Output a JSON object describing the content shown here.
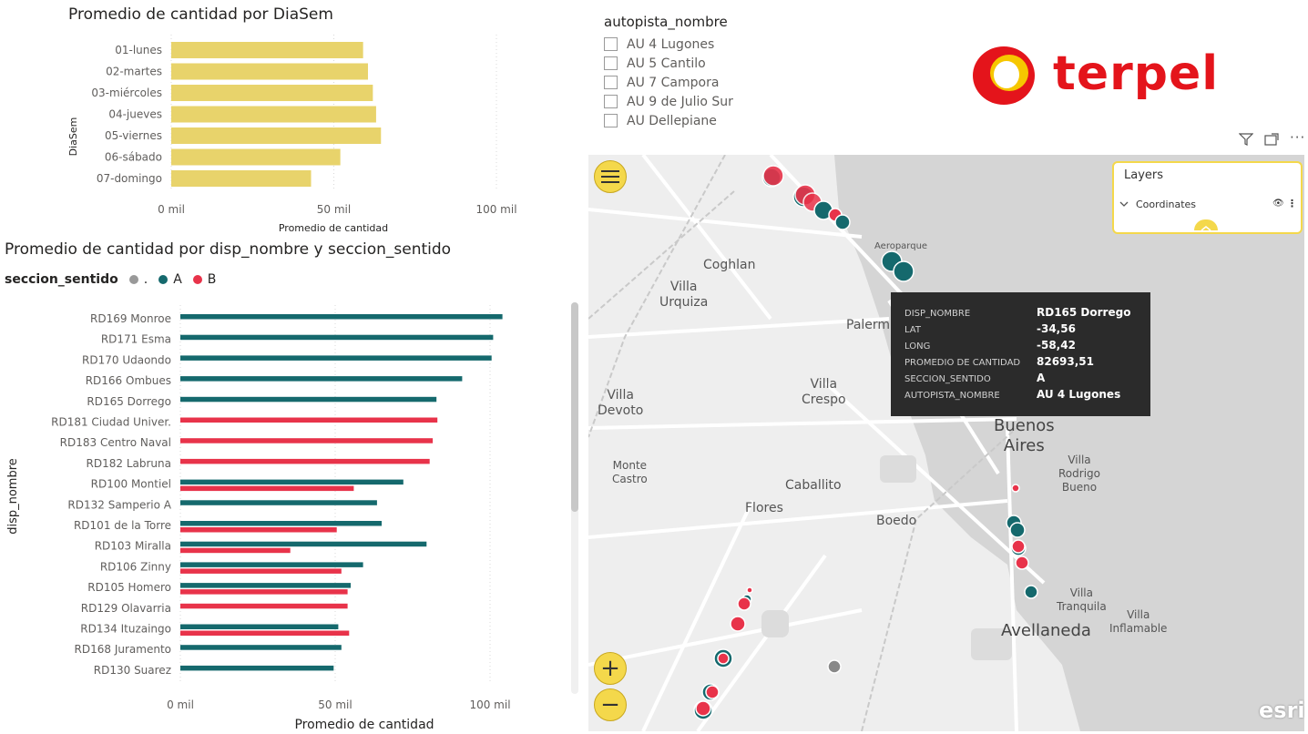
{
  "chart1": {
    "title": "Promedio de cantidad por DiaSem",
    "ylabel": "DiaSem",
    "xlabel": "Promedio de cantidad",
    "ticks": [
      "0 mil",
      "50 mil",
      "100 mil"
    ]
  },
  "chart2": {
    "title": "Promedio de cantidad por disp_nombre y seccion_sentido",
    "legend_title": "seccion_sentido",
    "legend_items": [
      ".",
      "A",
      "B"
    ],
    "ylabel": "disp_nombre",
    "xlabel": "Promedio de cantidad",
    "ticks": [
      "0 mil",
      "50 mil",
      "100 mil"
    ]
  },
  "chart_data": [
    {
      "type": "bar",
      "title": "Promedio de cantidad por DiaSem",
      "xlabel": "Promedio de cantidad",
      "ylabel": "DiaSem",
      "xlim": [
        0,
        100000
      ],
      "categories": [
        "01-lunes",
        "02-martes",
        "03-miércoles",
        "04-jueves",
        "05-viernes",
        "06-sábado",
        "07-domingo"
      ],
      "values": [
        59000,
        60500,
        62000,
        63000,
        64500,
        52000,
        43000
      ],
      "color": "#e8d36b",
      "grid": true
    },
    {
      "type": "bar",
      "title": "Promedio de cantidad por disp_nombre y seccion_sentido",
      "xlabel": "Promedio de cantidad",
      "ylabel": "disp_nombre",
      "xlim": [
        0,
        100000
      ],
      "legend_title": "seccion_sentido",
      "categories": [
        "RD169 Monroe",
        "RD171 Esma",
        "RD170 Udaondo",
        "RD166 Ombues",
        "RD165 Dorrego",
        "RD181 Ciudad Univer.",
        "RD183 Centro Naval",
        "RD182 Labruna",
        "RD100 Montiel",
        "RD132 Samperio A",
        "RD101 de la Torre",
        "RD103 Miralla",
        "RD106 Zinny",
        "RD105 Homero",
        "RD129 Olavarria",
        "RD134 Ituzaingo",
        "RD168 Juramento",
        "RD130 Suarez"
      ],
      "series": [
        {
          "name": ".",
          "color": "#999999",
          "values": [
            null,
            null,
            null,
            null,
            null,
            null,
            null,
            null,
            null,
            null,
            null,
            null,
            null,
            null,
            null,
            null,
            null,
            null
          ]
        },
        {
          "name": "A",
          "color": "#15696d",
          "values": [
            104000,
            101000,
            100500,
            91000,
            82700,
            null,
            null,
            null,
            72000,
            63500,
            65000,
            79500,
            59000,
            55000,
            null,
            51000,
            52000,
            49500
          ]
        },
        {
          "name": "B",
          "color": "#e8334a",
          "values": [
            null,
            null,
            null,
            null,
            null,
            83000,
            81500,
            80500,
            56000,
            null,
            50500,
            35500,
            52000,
            54000,
            54000,
            54500,
            null,
            null
          ]
        }
      ],
      "grid": true
    }
  ],
  "slicer": {
    "title": "autopista_nombre",
    "items": [
      "AU 4 Lugones",
      "AU 5 Cantilo",
      "AU 7 Campora",
      "AU 9 de Julio Sur",
      "AU Dellepiane"
    ]
  },
  "logo": {
    "text": "terpel",
    "color": "#e4141b",
    "accent": "#f6c700"
  },
  "map": {
    "labels": {
      "coghlan": "Coghlan",
      "villa_urquiza": "Villa\nUrquiza",
      "palermo": "Palerm",
      "villa_crespo": "Villa\nCrespo",
      "villa_devoto": "Villa\nDevoto",
      "buenos_aires": "Buenos\nAires",
      "villa_rodrigo_bueno": "Villa\nRodrigo\nBueno",
      "monte_castro": "Monte\nCastro",
      "caballito": "Caballito",
      "flores": "Flores",
      "boedo": "Boedo",
      "villa_tranquila": "Villa\nTranquila",
      "villa_inflamable": "Villa\nInflamable",
      "avellaneda": "Avellaneda",
      "aeroparque": "Aeroparque"
    },
    "attribution": "esri",
    "zoom_in": "+",
    "zoom_out": "−"
  },
  "layers": {
    "title": "Layers",
    "layer_name": "Coordinates"
  },
  "tooltip": {
    "rows": [
      {
        "k": "DISP_NOMBRE",
        "v": "RD165 Dorrego"
      },
      {
        "k": "LAT",
        "v": "-34,56"
      },
      {
        "k": "LONG",
        "v": "-58,42"
      },
      {
        "k": "PROMEDIO DE CANTIDAD",
        "v": "82693,51"
      },
      {
        "k": "SECCION_SENTIDO",
        "v": "A"
      },
      {
        "k": "AUTOPISTA_NOMBRE",
        "v": "AU 4 Lugones"
      }
    ]
  },
  "colors": {
    "A": "#15696d",
    "B": "#e8334a",
    "dot": "#999999",
    "bar1": "#e8d36b",
    "accent": "#f4d84b"
  }
}
